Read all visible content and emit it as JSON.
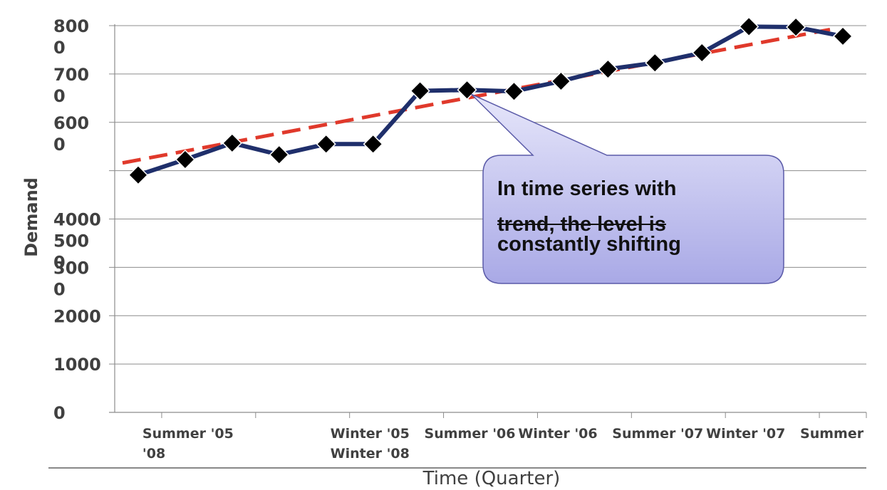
{
  "chart_data": {
    "type": "line",
    "title": "",
    "xlabel": "Time (Quarter)",
    "ylabel": "Demand",
    "ylim": [
      0,
      8000
    ],
    "grid": true,
    "y_tick_labels": [
      {
        "value": 0,
        "lines": [
          "0"
        ]
      },
      {
        "value": 1000,
        "lines": [
          "1000"
        ]
      },
      {
        "value": 2000,
        "lines": [
          "2000"
        ]
      },
      {
        "value": 3000,
        "lines": [
          "300",
          "0"
        ]
      },
      {
        "value": 4000,
        "lines": [
          "4000",
          "500",
          "0"
        ]
      },
      {
        "value": 6000,
        "lines": [
          "600",
          "0"
        ]
      },
      {
        "value": 7000,
        "lines": [
          "700",
          "0"
        ]
      },
      {
        "value": 8000,
        "lines": [
          "800",
          "0"
        ]
      }
    ],
    "gridline_values": [
      0,
      1000,
      2000,
      3000,
      4000,
      5000,
      6000,
      7000,
      8000
    ],
    "x_tick_labels": [
      {
        "position": 1.5,
        "lines": [
          "Summer '05",
          "'08"
        ]
      },
      {
        "position": 5.5,
        "lines": [
          "Winter '05",
          "Winter '08"
        ]
      },
      {
        "position": 7.5,
        "lines": [
          "Summer '06"
        ]
      },
      {
        "position": 9.5,
        "lines": [
          "Winter '06"
        ]
      },
      {
        "position": 11.5,
        "lines": [
          "Summer '07"
        ]
      },
      {
        "position": 13.5,
        "lines": [
          "Winter '07"
        ]
      },
      {
        "position": 15.5,
        "lines": [
          "Summer"
        ]
      }
    ],
    "series": [
      {
        "values": [
          4910,
          5230,
          5570,
          5330,
          5550,
          5550,
          6650,
          6670,
          6640,
          6850,
          7100,
          7230,
          7440,
          7980,
          7970,
          7780
        ]
      }
    ],
    "trend_line": [
      5160,
      7920
    ],
    "colors": {
      "series": "#1f2f6b",
      "marker": "#000000",
      "trend": "#e0392b",
      "grid": "#8c8c8c",
      "axis": "#8c8c8c",
      "text": "#404040"
    },
    "annotation": {
      "line1": "In time series with",
      "line2": "trend, the level is",
      "line3": "constantly shifting",
      "points_to_index": 7,
      "fill": "#c8c8f0",
      "border": "#5a5aa8"
    }
  }
}
